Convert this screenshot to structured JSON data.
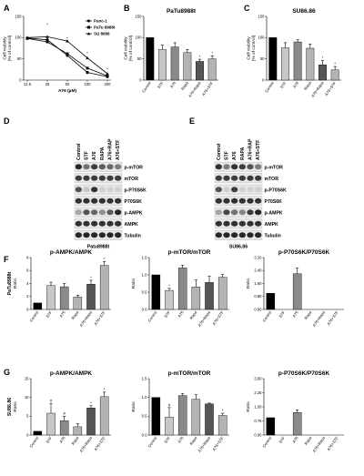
{
  "panel_letters": [
    "A",
    "B",
    "C",
    "D",
    "E",
    "F",
    "G"
  ],
  "colors": {
    "black": "#000000",
    "dark": "#555555",
    "mid": "#8a8a8a",
    "light": "#b3b3b3",
    "lighter": "#c7c7c7"
  },
  "chart_data": [
    {
      "id": "A",
      "type": "line",
      "x_tick_labels": [
        "12.5",
        "25",
        "50",
        "100",
        "200"
      ],
      "xlabel": "A76 (µM)",
      "ylabel": "Cell viability\n(% of control)",
      "ylim": [
        0,
        150
      ],
      "yticks": [
        "0",
        "50",
        "100",
        "150"
      ],
      "series": [
        {
          "name": "Panc-1",
          "marker": "circle",
          "x": [
            12.5,
            25,
            50,
            100,
            200
          ],
          "y": [
            99,
            95,
            58,
            18,
            8
          ]
        },
        {
          "name": "PaTu 8988t",
          "marker": "square",
          "x": [
            12.5,
            25,
            50,
            100,
            200
          ],
          "y": [
            98,
            90,
            62,
            28,
            10
          ]
        },
        {
          "name": "SU 8686",
          "marker": "triangle",
          "x": [
            12.5,
            25,
            50,
            100,
            200
          ],
          "y": [
            100,
            102,
            92,
            52,
            15
          ]
        }
      ],
      "annotations": [
        "*",
        "*",
        "*",
        "*"
      ]
    },
    {
      "id": "B",
      "type": "bar",
      "title": "PaTu8988t",
      "categories": [
        "Control",
        "STF",
        "A76",
        "Rapa",
        "A76+Rapa",
        "A76+STF"
      ],
      "values": [
        100,
        72,
        78,
        65,
        44,
        50
      ],
      "errors": [
        0,
        10,
        10,
        7,
        5,
        7
      ],
      "stars": [
        "",
        "",
        "",
        "",
        "*",
        "*"
      ],
      "ylabel": "Cell viability\n(% of control)",
      "ylim": [
        0,
        150
      ],
      "yticks": [
        "0",
        "50",
        "100",
        "150"
      ]
    },
    {
      "id": "C",
      "type": "bar",
      "title": "SU86.86",
      "categories": [
        "Control",
        "STF",
        "A76",
        "Rapa",
        "A76+Rapa",
        "A76+STF"
      ],
      "values": [
        100,
        76,
        90,
        75,
        36,
        24
      ],
      "errors": [
        0,
        12,
        5,
        10,
        10,
        8
      ],
      "stars": [
        "",
        "",
        "",
        "",
        "*",
        "*"
      ],
      "ylabel": "Cell viability\n(% of control)",
      "ylim": [
        0,
        150
      ],
      "yticks": [
        "0",
        "50",
        "100",
        "150"
      ]
    },
    {
      "id": "F1",
      "type": "bar",
      "title": "p-AMPK/AMPK",
      "row_label": "PaTu8988t",
      "categories": [
        "Control",
        "STF",
        "A76",
        "Rapa",
        "A76+Rapa",
        "A76+STF"
      ],
      "values": [
        1,
        3.7,
        3.5,
        1.9,
        3.9,
        6.8
      ],
      "errors": [
        0,
        0.5,
        0.5,
        0.3,
        0.6,
        0.6
      ],
      "stars": [
        "",
        "",
        "",
        "",
        "*",
        "*"
      ],
      "ylabel": "Ratio",
      "ylim": [
        0,
        8
      ],
      "yticks": [
        "0",
        "2",
        "4",
        "6",
        "8"
      ]
    },
    {
      "id": "F2",
      "type": "bar",
      "title": "p-mTOR/mTOR",
      "categories": [
        "Control",
        "STF",
        "A76",
        "Rapa",
        "A76+Rapa",
        "A76+STF"
      ],
      "values": [
        1,
        0.55,
        1.2,
        0.65,
        0.78,
        0.93
      ],
      "errors": [
        0,
        0.06,
        0.08,
        0.2,
        0.18,
        0.08
      ],
      "stars": [
        "",
        "*",
        "",
        "",
        "",
        ""
      ],
      "ylabel": "Ratio",
      "ylim": [
        0,
        1.5
      ],
      "yticks": [
        "0.0",
        "0.5",
        "1.0",
        "1.5"
      ]
    },
    {
      "id": "F3",
      "type": "bar",
      "title": "p-P70S6K/P70S6K",
      "categories": [
        "Control",
        "STF",
        "A76",
        "Rapa",
        "A76+Rapa",
        "A76+STF"
      ],
      "values": [
        1,
        0,
        2.2,
        0,
        0,
        0
      ],
      "errors": [
        0,
        0,
        0.35,
        0,
        0,
        0
      ],
      "stars": [
        "",
        "",
        "",
        "",
        "",
        ""
      ],
      "ylabel": "Ratio",
      "ylim": [
        0,
        3.2
      ],
      "yticks": [
        "0.00",
        "0.80",
        "1.60",
        "2.40",
        "3.20"
      ]
    },
    {
      "id": "G1",
      "type": "bar",
      "title": "p-AMPK/AMPK",
      "row_label": "SU86.86",
      "categories": [
        "Control",
        "STF",
        "A76",
        "Rapa",
        "A76+Rapa",
        "A76+STF"
      ],
      "values": [
        1,
        5.8,
        3.8,
        2.2,
        7.2,
        10.2
      ],
      "errors": [
        0,
        2.5,
        1.2,
        0.8,
        0.6,
        1.2
      ],
      "stars": [
        "",
        "#",
        "#",
        "",
        "*",
        "*"
      ],
      "ylabel": "Ratio",
      "ylim": [
        0,
        15
      ],
      "yticks": [
        "0",
        "5",
        "10",
        "15"
      ]
    },
    {
      "id": "G2",
      "type": "bar",
      "title": "p-mTOR/mTOR",
      "categories": [
        "Control",
        "STF",
        "A76",
        "Rapa",
        "A76+Rapa",
        "A76+STF"
      ],
      "values": [
        1,
        0.48,
        1.05,
        0.95,
        0.83,
        0.52
      ],
      "errors": [
        0,
        0.25,
        0.05,
        0.12,
        0.02,
        0.06
      ],
      "stars": [
        "",
        "#",
        "",
        "",
        "",
        "*"
      ],
      "ylabel": "Ratio",
      "ylim": [
        0,
        1.5
      ],
      "yticks": [
        "0.0",
        "0.5",
        "1.0",
        "1.5"
      ]
    },
    {
      "id": "G3",
      "type": "bar",
      "title": "p-P70S6K/P70S6K",
      "categories": [
        "Control",
        "STF",
        "A76",
        "Rapa",
        "A76+Rapa",
        "A76+STF"
      ],
      "values": [
        1,
        0,
        1.3,
        0,
        0,
        0
      ],
      "errors": [
        0,
        0,
        0.15,
        0,
        0,
        0
      ],
      "stars": [
        "",
        "",
        "",
        "",
        "",
        ""
      ],
      "ylabel": "Ratio",
      "ylim": [
        0,
        3.25
      ],
      "yticks": [
        "0.00",
        "0.75",
        "1.50",
        "2.25",
        "3.00"
      ]
    }
  ],
  "blots": [
    {
      "id": "D",
      "cell_line": "Patu8988t",
      "lanes": [
        "Control",
        "STF",
        "A76",
        "RAPA",
        "A76+RAP",
        "A76+STF"
      ],
      "rows": [
        "p-mTOR",
        "mTOR",
        "p-P70S6K",
        "P70S6K",
        "p-AMPK",
        "AMPK",
        "Tubulin"
      ],
      "intensity": [
        [
          0.9,
          0.55,
          0.8,
          0.65,
          0.6,
          0.5
        ],
        [
          0.8,
          0.8,
          0.8,
          0.8,
          0.8,
          0.8
        ],
        [
          0.7,
          0.15,
          0.85,
          0.1,
          0.1,
          0.1
        ],
        [
          0.85,
          0.85,
          0.85,
          0.85,
          0.85,
          0.85
        ],
        [
          0.3,
          0.7,
          0.6,
          0.4,
          0.65,
          0.9
        ],
        [
          0.85,
          0.85,
          0.85,
          0.85,
          0.85,
          0.85
        ],
        [
          0.9,
          0.9,
          0.9,
          0.9,
          0.9,
          0.9
        ]
      ]
    },
    {
      "id": "E",
      "cell_line": "SU86.86",
      "lanes": [
        "Control",
        "STF",
        "A76",
        "RAPA",
        "A76+RAP",
        "A76+STF"
      ],
      "rows": [
        "p-mTOR",
        "mTOR",
        "p-P70S6K",
        "P70S6K",
        "p-AMPK",
        "AMPK",
        "Tubulin"
      ],
      "intensity": [
        [
          0.85,
          0.5,
          0.85,
          0.8,
          0.7,
          0.5
        ],
        [
          0.8,
          0.8,
          0.8,
          0.8,
          0.8,
          0.8
        ],
        [
          0.7,
          0.1,
          0.8,
          0.1,
          0.1,
          0.1
        ],
        [
          0.85,
          0.85,
          0.85,
          0.85,
          0.85,
          0.85
        ],
        [
          0.3,
          0.75,
          0.55,
          0.45,
          0.8,
          0.9
        ],
        [
          0.85,
          0.85,
          0.85,
          0.85,
          0.85,
          0.85
        ],
        [
          0.9,
          0.9,
          0.9,
          0.9,
          0.9,
          0.9
        ]
      ]
    }
  ]
}
